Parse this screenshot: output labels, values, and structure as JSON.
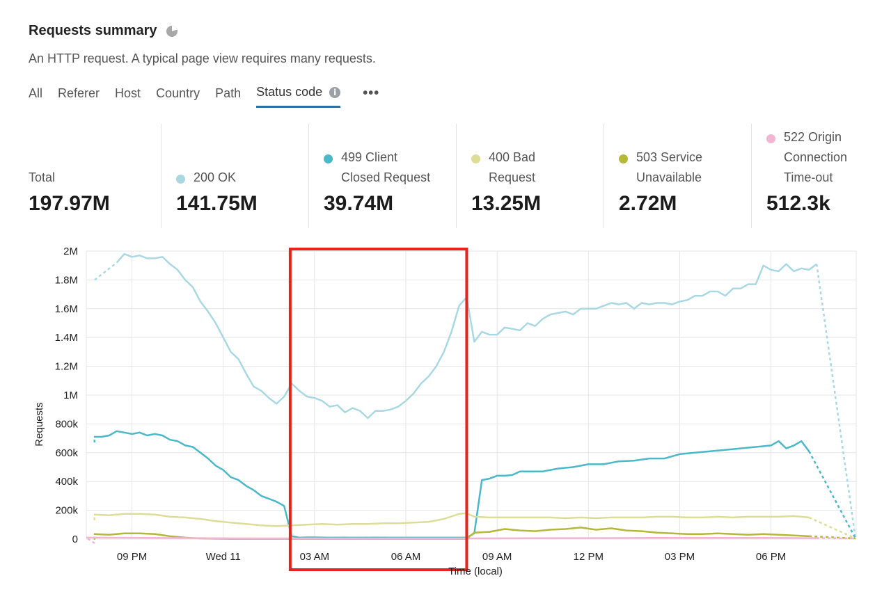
{
  "header": {
    "title": "Requests summary",
    "subtitle": "An HTTP request. A typical page view requires many requests.",
    "title_icon": "pie-chart-icon"
  },
  "tabs": [
    {
      "label": "All"
    },
    {
      "label": "Referer"
    },
    {
      "label": "Host"
    },
    {
      "label": "Country"
    },
    {
      "label": "Path"
    },
    {
      "label": "Status code",
      "active": true
    }
  ],
  "tab_info_icon": "i",
  "more_label": "•••",
  "stats": [
    {
      "label": "Total",
      "value": "197.97M",
      "color": ""
    },
    {
      "label": "200 OK",
      "value": "141.75M",
      "color": "#a9d8e3"
    },
    {
      "label": "499 Client Closed Request",
      "label_lines": [
        "499 Client",
        "Closed Request"
      ],
      "value": "39.74M",
      "color": "#4bb8c9"
    },
    {
      "label": "400 Bad Request",
      "label_lines": [
        "400 Bad",
        "Request"
      ],
      "value": "13.25M",
      "color": "#dedd98"
    },
    {
      "label": "503 Service Unavailable",
      "label_lines": [
        "503 Service",
        "Unavailable"
      ],
      "value": "2.72M",
      "color": "#b4b836"
    },
    {
      "label": "522 Origin Connection Time-out",
      "label_lines": [
        "522 Origin",
        "Connection",
        "Time-out"
      ],
      "value": "512.3k",
      "color": "#f0b6d3"
    }
  ],
  "chart_data": {
    "type": "line",
    "xlabel": "Time (local)",
    "ylabel": "Requests",
    "ylim": [
      0,
      2000000
    ],
    "yticks": [
      0,
      200000,
      400000,
      600000,
      800000,
      1000000,
      1200000,
      1400000,
      1600000,
      1800000,
      2000000
    ],
    "ytick_labels": [
      "0",
      "200k",
      "400k",
      "600k",
      "800k",
      "1M",
      "1.2M",
      "1.4M",
      "1.6M",
      "1.8M",
      "2M"
    ],
    "x_range_hours": [
      -4.5,
      20.8
    ],
    "xticks": [
      -3,
      0,
      3,
      6,
      9,
      12,
      15,
      18
    ],
    "xtick_labels": [
      "09 PM",
      "Wed 11",
      "03 AM",
      "06 AM",
      "09 AM",
      "12 PM",
      "03 PM",
      "06 PM"
    ],
    "grid": true,
    "highlight_box_hours": [
      2.2,
      8.0
    ],
    "highlight_color": "#e8231d",
    "series": [
      {
        "name": "200 OK",
        "color": "#a9d8e3",
        "x": [
          -3.5,
          -3.25,
          -3.0,
          -2.75,
          -2.5,
          -2.25,
          -2.0,
          -1.75,
          -1.5,
          -1.25,
          -1.0,
          -0.75,
          -0.5,
          -0.25,
          0.0,
          0.25,
          0.5,
          0.75,
          1.0,
          1.25,
          1.5,
          1.75,
          2.0,
          2.25,
          2.5,
          2.75,
          3.0,
          3.25,
          3.5,
          3.75,
          4.0,
          4.25,
          4.5,
          4.75,
          5.0,
          5.25,
          5.5,
          5.75,
          6.0,
          6.25,
          6.5,
          6.75,
          7.0,
          7.25,
          7.5,
          7.75,
          8.0,
          8.25,
          8.5,
          8.75,
          9.0,
          9.25,
          9.5,
          9.75,
          10.0,
          10.25,
          10.5,
          10.75,
          11.0,
          11.25,
          11.5,
          11.75,
          12.0,
          12.25,
          12.5,
          12.75,
          13.0,
          13.25,
          13.5,
          13.75,
          14.0,
          14.25,
          14.5,
          14.75,
          15.0,
          15.25,
          15.5,
          15.75,
          16.0,
          16.25,
          16.5,
          16.75,
          17.0,
          17.25,
          17.5,
          17.75,
          18.0,
          18.25,
          18.5,
          18.75,
          19.0,
          19.25,
          19.5
        ],
        "y": [
          1920000,
          1980000,
          1960000,
          1970000,
          1950000,
          1950000,
          1960000,
          1910000,
          1870000,
          1800000,
          1750000,
          1650000,
          1580000,
          1500000,
          1400000,
          1300000,
          1250000,
          1150000,
          1060000,
          1030000,
          980000,
          940000,
          990000,
          1080000,
          1030000,
          990000,
          980000,
          960000,
          920000,
          930000,
          880000,
          910000,
          890000,
          840000,
          890000,
          890000,
          900000,
          920000,
          960000,
          1010000,
          1080000,
          1130000,
          1200000,
          1300000,
          1440000,
          1620000,
          1680000,
          1370000,
          1440000,
          1420000,
          1420000,
          1470000,
          1460000,
          1450000,
          1500000,
          1480000,
          1530000,
          1560000,
          1570000,
          1580000,
          1560000,
          1600000,
          1600000,
          1600000,
          1620000,
          1640000,
          1630000,
          1640000,
          1600000,
          1640000,
          1630000,
          1640000,
          1640000,
          1630000,
          1650000,
          1660000,
          1690000,
          1690000,
          1720000,
          1720000,
          1690000,
          1740000,
          1740000,
          1770000,
          1770000,
          1900000,
          1870000,
          1860000,
          1910000,
          1860000,
          1880000,
          1870000,
          1910000
        ]
      },
      {
        "name": "499 Client Closed Request",
        "color": "#4bb8c9",
        "x": [
          -4.25,
          -4.0,
          -3.75,
          -3.5,
          -3.25,
          -3.0,
          -2.75,
          -2.5,
          -2.25,
          -2.0,
          -1.75,
          -1.5,
          -1.25,
          -1.0,
          -0.75,
          -0.5,
          -0.25,
          0.0,
          0.25,
          0.5,
          0.75,
          1.0,
          1.25,
          1.5,
          1.75,
          2.0,
          2.25,
          2.5,
          2.75,
          3.0,
          3.5,
          4.0,
          4.5,
          5.0,
          5.5,
          6.0,
          6.5,
          7.0,
          7.5,
          8.0,
          8.25,
          8.5,
          8.75,
          9.0,
          9.25,
          9.5,
          9.75,
          10.0,
          10.5,
          11.0,
          11.5,
          12.0,
          12.5,
          13.0,
          13.5,
          14.0,
          14.5,
          15.0,
          15.5,
          16.0,
          16.5,
          17.0,
          17.5,
          18.0,
          18.25,
          18.5,
          18.75,
          19.0,
          19.25
        ],
        "y": [
          710000,
          710000,
          720000,
          750000,
          740000,
          730000,
          740000,
          720000,
          730000,
          720000,
          690000,
          680000,
          650000,
          640000,
          600000,
          560000,
          510000,
          480000,
          430000,
          410000,
          370000,
          340000,
          300000,
          280000,
          260000,
          230000,
          20000,
          10000,
          12000,
          12000,
          10000,
          11000,
          10000,
          11000,
          10000,
          10000,
          10000,
          10000,
          10000,
          10000,
          40000,
          410000,
          420000,
          440000,
          440000,
          445000,
          470000,
          470000,
          470000,
          490000,
          500000,
          520000,
          520000,
          540000,
          545000,
          560000,
          560000,
          590000,
          600000,
          610000,
          620000,
          630000,
          640000,
          650000,
          680000,
          630000,
          650000,
          680000,
          610000
        ]
      },
      {
        "name": "400 Bad Request",
        "color": "#dedd98",
        "x": [
          -4.25,
          -3.75,
          -3.25,
          -2.75,
          -2.25,
          -1.75,
          -1.25,
          -0.75,
          -0.25,
          0.25,
          0.75,
          1.25,
          1.75,
          2.25,
          2.75,
          3.25,
          3.75,
          4.25,
          4.75,
          5.25,
          5.75,
          6.25,
          6.75,
          7.25,
          7.75,
          8.0,
          8.25,
          8.75,
          9.25,
          9.75,
          10.25,
          10.75,
          11.25,
          11.75,
          12.25,
          12.75,
          13.25,
          13.75,
          14.25,
          14.75,
          15.25,
          15.75,
          16.25,
          16.75,
          17.25,
          17.75,
          18.25,
          18.75,
          19.25
        ],
        "y": [
          170000,
          165000,
          175000,
          175000,
          170000,
          155000,
          150000,
          140000,
          125000,
          115000,
          105000,
          95000,
          90000,
          95000,
          100000,
          105000,
          100000,
          105000,
          105000,
          110000,
          110000,
          115000,
          120000,
          140000,
          175000,
          180000,
          155000,
          150000,
          150000,
          150000,
          150000,
          150000,
          145000,
          150000,
          145000,
          150000,
          150000,
          150000,
          155000,
          155000,
          150000,
          150000,
          155000,
          150000,
          155000,
          155000,
          155000,
          160000,
          150000
        ]
      },
      {
        "name": "503 Service Unavailable",
        "color": "#b4b836",
        "x": [
          -4.25,
          -3.75,
          -3.25,
          -2.75,
          -2.25,
          -1.75,
          -1.25,
          -0.75,
          -0.25,
          0.25,
          0.75,
          1.25,
          1.75,
          2.25,
          2.75,
          3.25,
          3.75,
          4.25,
          4.75,
          5.25,
          5.75,
          6.25,
          6.75,
          7.25,
          7.75,
          8.0,
          8.25,
          8.75,
          9.25,
          9.75,
          10.25,
          10.75,
          11.25,
          11.75,
          12.25,
          12.75,
          13.25,
          13.75,
          14.25,
          14.75,
          15.25,
          15.75,
          16.25,
          16.75,
          17.25,
          17.75,
          18.25,
          18.75,
          19.25
        ],
        "y": [
          35000,
          30000,
          40000,
          40000,
          35000,
          20000,
          10000,
          5000,
          3000,
          2000,
          2000,
          2000,
          2000,
          2000,
          2000,
          2000,
          2000,
          2000,
          2000,
          2000,
          2000,
          2000,
          2000,
          2000,
          2000,
          2000,
          45000,
          50000,
          70000,
          60000,
          55000,
          65000,
          70000,
          80000,
          65000,
          75000,
          60000,
          55000,
          45000,
          40000,
          35000,
          35000,
          40000,
          35000,
          30000,
          35000,
          30000,
          25000,
          20000
        ]
      },
      {
        "name": "522 Origin Connection Time-out",
        "color": "#f0b6d3",
        "x": [
          -4.5,
          -3.0,
          -1.0,
          1.0,
          3.0,
          5.0,
          7.0,
          8.0,
          10.0,
          12.0,
          14.0,
          16.0,
          18.0,
          19.5
        ],
        "y": [
          10000,
          9000,
          7000,
          5000,
          5000,
          5000,
          5000,
          5000,
          6000,
          7000,
          8000,
          8000,
          8000,
          7000
        ]
      }
    ]
  }
}
